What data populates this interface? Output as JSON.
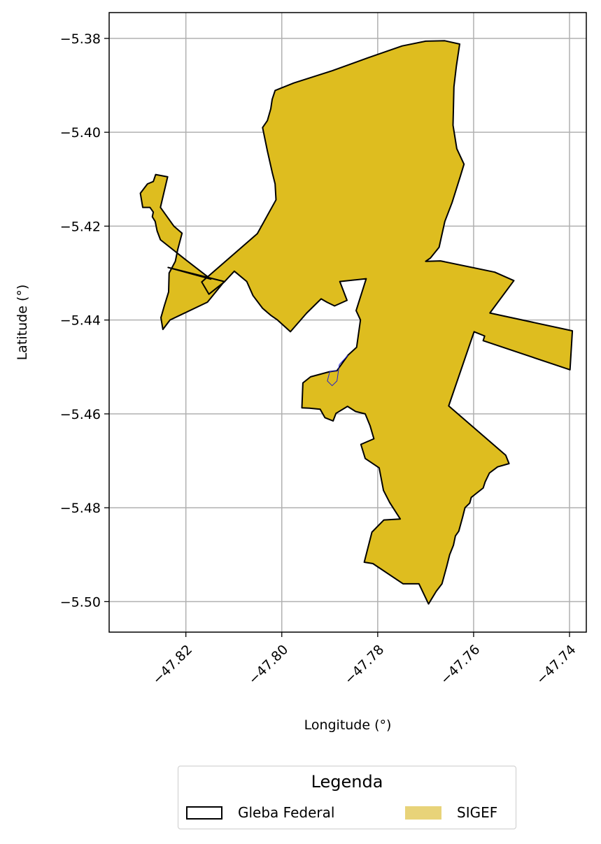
{
  "chart_data": {
    "type": "map",
    "xlabel": "Longitude (°)",
    "ylabel": "Latitude (°)",
    "xlim": [
      -47.836,
      -47.7365
    ],
    "ylim": [
      -5.5065,
      -5.3745
    ],
    "xticks": [
      -47.82,
      -47.8,
      -47.78,
      -47.76,
      -47.74
    ],
    "xtick_labels": [
      "−47.82",
      "−47.80",
      "−47.78",
      "−47.76",
      "−47.74"
    ],
    "yticks": [
      -5.38,
      -5.4,
      -5.42,
      -5.44,
      -5.46,
      -5.48,
      -5.5
    ],
    "ytick_labels": [
      "−5.38",
      "−5.40",
      "−5.42",
      "−5.44",
      "−5.46",
      "−5.48",
      "−5.50"
    ],
    "grid": true,
    "colors": {
      "sigef_fill": "#DEBD1F",
      "gleba_edge": "#000000",
      "inner_edge": "#2222cc",
      "grid": "#b0b0b0"
    },
    "layers": [
      {
        "name": "Gleba Federal",
        "style": "outline",
        "polygon": [
          [
            -47.8014,
            -5.3911
          ],
          [
            -47.7975,
            -5.3895
          ],
          [
            -47.7895,
            -5.3869
          ],
          [
            -47.7822,
            -5.3842
          ],
          [
            -47.7749,
            -5.3816
          ],
          [
            -47.77,
            -5.3806
          ],
          [
            -47.766,
            -5.3805
          ],
          [
            -47.7629,
            -5.3812
          ],
          [
            -47.7636,
            -5.386
          ],
          [
            -47.7641,
            -5.3903
          ],
          [
            -47.7643,
            -5.3985
          ],
          [
            -47.7635,
            -5.4035
          ],
          [
            -47.762,
            -5.4068
          ],
          [
            -47.7628,
            -5.4095
          ],
          [
            -47.7645,
            -5.415
          ],
          [
            -47.766,
            -5.419
          ],
          [
            -47.7672,
            -5.4245
          ],
          [
            -47.769,
            -5.4268
          ],
          [
            -47.77,
            -5.4275
          ],
          [
            -47.7669,
            -5.4274
          ],
          [
            -47.7556,
            -5.4298
          ],
          [
            -47.7516,
            -5.4316
          ],
          [
            -47.7566,
            -5.4385
          ],
          [
            -47.7394,
            -5.4423
          ],
          [
            -47.7399,
            -5.4506
          ],
          [
            -47.758,
            -5.4444
          ],
          [
            -47.7577,
            -5.4434
          ],
          [
            -47.7599,
            -5.4425
          ],
          [
            -47.7652,
            -5.4583
          ],
          [
            -47.7533,
            -5.4688
          ],
          [
            -47.7526,
            -5.4706
          ],
          [
            -47.755,
            -5.4713
          ],
          [
            -47.7567,
            -5.4726
          ],
          [
            -47.7576,
            -5.4745
          ],
          [
            -47.758,
            -5.4758
          ],
          [
            -47.7605,
            -5.4778
          ],
          [
            -47.7608,
            -5.479
          ],
          [
            -47.7618,
            -5.48
          ],
          [
            -47.7623,
            -5.482
          ],
          [
            -47.7631,
            -5.485
          ],
          [
            -47.7638,
            -5.486
          ],
          [
            -47.7642,
            -5.488
          ],
          [
            -47.765,
            -5.49
          ],
          [
            -47.7656,
            -5.4925
          ],
          [
            -47.7666,
            -5.4962
          ],
          [
            -47.7678,
            -5.4978
          ],
          [
            -47.7694,
            -5.5005
          ],
          [
            -47.7714,
            -5.4962
          ],
          [
            -47.7747,
            -5.4962
          ],
          [
            -47.781,
            -5.4919
          ],
          [
            -47.7828,
            -5.4916
          ],
          [
            -47.7812,
            -5.4852
          ],
          [
            -47.7787,
            -5.4826
          ],
          [
            -47.7753,
            -5.4824
          ],
          [
            -47.7775,
            -5.4789
          ],
          [
            -47.7788,
            -5.4763
          ],
          [
            -47.7797,
            -5.4715
          ],
          [
            -47.7826,
            -5.4695
          ],
          [
            -47.7835,
            -5.4665
          ],
          [
            -47.7808,
            -5.4653
          ],
          [
            -47.7816,
            -5.4625
          ],
          [
            -47.7826,
            -5.46
          ],
          [
            -47.7846,
            -5.4595
          ],
          [
            -47.7863,
            -5.4584
          ],
          [
            -47.7887,
            -5.4599
          ],
          [
            -47.7893,
            -5.4615
          ],
          [
            -47.791,
            -5.4608
          ],
          [
            -47.792,
            -5.459
          ],
          [
            -47.7942,
            -5.4588
          ],
          [
            -47.7958,
            -5.4587
          ],
          [
            -47.7956,
            -5.4534
          ],
          [
            -47.794,
            -5.4521
          ],
          [
            -47.79,
            -5.451
          ],
          [
            -47.7885,
            -5.4508
          ],
          [
            -47.7862,
            -5.4475
          ],
          [
            -47.7844,
            -5.4458
          ],
          [
            -47.7836,
            -5.44
          ],
          [
            -47.7845,
            -5.438
          ],
          [
            -47.7824,
            -5.4312
          ],
          [
            -47.7879,
            -5.4318
          ],
          [
            -47.7864,
            -5.4358
          ],
          [
            -47.789,
            -5.437
          ],
          [
            -47.7906,
            -5.4362
          ],
          [
            -47.7918,
            -5.4355
          ],
          [
            -47.7948,
            -5.4385
          ],
          [
            -47.7982,
            -5.4425
          ],
          [
            -47.8009,
            -5.44
          ],
          [
            -47.8023,
            -5.439
          ],
          [
            -47.804,
            -5.4375
          ],
          [
            -47.806,
            -5.4348
          ],
          [
            -47.8073,
            -5.4318
          ],
          [
            -47.8099,
            -5.4296
          ],
          [
            -47.812,
            -5.4319
          ],
          [
            -47.8152,
            -5.4345
          ],
          [
            -47.8167,
            -5.4319
          ],
          [
            -47.8051,
            -5.4216
          ],
          [
            -47.8012,
            -5.4144
          ],
          [
            -47.8014,
            -5.411
          ],
          [
            -47.802,
            -5.4085
          ],
          [
            -47.803,
            -5.404
          ],
          [
            -47.804,
            -5.399
          ],
          [
            -47.803,
            -5.3975
          ],
          [
            -47.8023,
            -5.395
          ],
          [
            -47.802,
            -5.393
          ]
        ]
      },
      {
        "name": "SIGEF",
        "style": "fill",
        "polygon": "same-as-gleba",
        "appendix_polygon": [
          [
            -47.8237,
            -5.4288
          ],
          [
            -47.8148,
            -5.4313
          ],
          [
            -47.82,
            -5.4272
          ],
          [
            -47.8253,
            -5.4229
          ],
          [
            -47.826,
            -5.421
          ],
          [
            -47.8264,
            -5.419
          ],
          [
            -47.827,
            -5.418
          ],
          [
            -47.8268,
            -5.417
          ],
          [
            -47.8275,
            -5.416
          ],
          [
            -47.829,
            -5.416
          ],
          [
            -47.8295,
            -5.413
          ],
          [
            -47.828,
            -5.411
          ],
          [
            -47.8268,
            -5.4105
          ],
          [
            -47.8263,
            -5.409
          ],
          [
            -47.8238,
            -5.4095
          ],
          [
            -47.8253,
            -5.416
          ],
          [
            -47.8225,
            -5.42
          ],
          [
            -47.8208,
            -5.4215
          ],
          [
            -47.8217,
            -5.425
          ],
          [
            -47.8222,
            -5.4275
          ],
          [
            -47.8235,
            -5.43
          ],
          [
            -47.8236,
            -5.434
          ],
          [
            -47.8245,
            -5.437
          ],
          [
            -47.8252,
            -5.4395
          ],
          [
            -47.8248,
            -5.442
          ],
          [
            -47.8233,
            -5.44
          ],
          [
            -47.8155,
            -5.4362
          ],
          [
            -47.812,
            -5.4318
          ]
        ]
      }
    ],
    "legend": {
      "title": "Legenda",
      "placement": "bottom-center",
      "entries": [
        {
          "label": "Gleba Federal",
          "style": "outline"
        },
        {
          "label": "SIGEF",
          "style": "fill"
        }
      ]
    }
  }
}
